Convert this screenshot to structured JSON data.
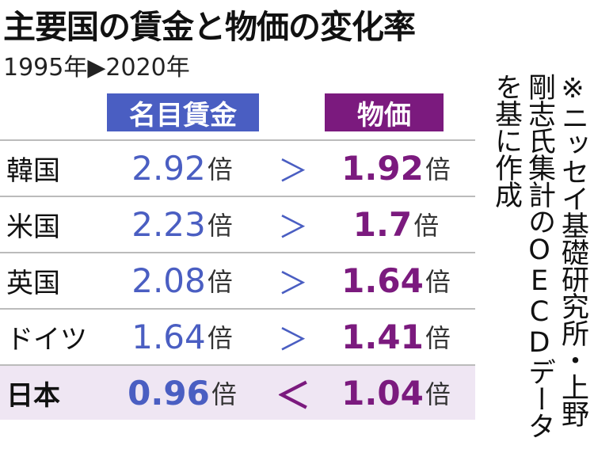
{
  "title": "主要国の賃金と物価の変化率",
  "subtitle": "1995年▶2020年",
  "header": {
    "wage": "名目賃金",
    "price": "物価"
  },
  "unit": "倍",
  "rows": [
    {
      "country": "韓国",
      "wage": 2.92,
      "comparison": "＞",
      "price": 1.92
    },
    {
      "country": "米国",
      "wage": 2.23,
      "comparison": "＞",
      "price": 1.7
    },
    {
      "country": "英国",
      "wage": 2.08,
      "comparison": "＞",
      "price": 1.64
    },
    {
      "country": "ドイツ",
      "wage": 1.64,
      "comparison": "＞",
      "price": 1.41
    },
    {
      "country": "日本",
      "wage": 0.96,
      "comparison": "＜",
      "price": 1.04
    }
  ],
  "note": "※ニッセイ基礎研究所・上野剛志氏集計のOECDデータを基に作成"
}
